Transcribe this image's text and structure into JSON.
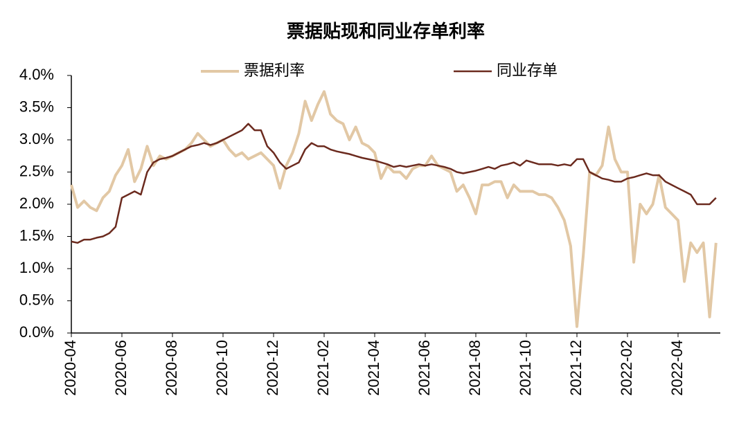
{
  "chart_data": {
    "type": "line",
    "title": "票据贴现和同业存单利率",
    "categories": [
      "2020-04",
      null,
      null,
      null,
      null,
      null,
      null,
      null,
      "2020-06",
      null,
      null,
      null,
      null,
      null,
      null,
      null,
      "2020-08",
      null,
      null,
      null,
      null,
      null,
      null,
      null,
      "2020-10",
      null,
      null,
      null,
      null,
      null,
      null,
      null,
      "2020-12",
      null,
      null,
      null,
      null,
      null,
      null,
      null,
      "2021-02",
      null,
      null,
      null,
      null,
      null,
      null,
      null,
      "2021-04",
      null,
      null,
      null,
      null,
      null,
      null,
      null,
      "2021-06",
      null,
      null,
      null,
      null,
      null,
      null,
      null,
      "2021-08",
      null,
      null,
      null,
      null,
      null,
      null,
      null,
      "2021-10",
      null,
      null,
      null,
      null,
      null,
      null,
      null,
      "2021-12",
      null,
      null,
      null,
      null,
      null,
      null,
      null,
      "2022-02",
      null,
      null,
      null,
      null,
      null,
      null,
      null,
      "2022-04",
      null,
      null,
      null,
      null,
      null,
      null
    ],
    "series": [
      {
        "name": "票据利率",
        "color": "#e2c8a5",
        "values": [
          2.3,
          1.95,
          2.05,
          1.95,
          1.9,
          2.1,
          2.2,
          2.45,
          2.6,
          2.85,
          2.35,
          2.55,
          2.9,
          2.6,
          2.75,
          2.7,
          2.75,
          2.8,
          2.85,
          2.95,
          3.1,
          3.0,
          2.9,
          2.95,
          3.0,
          2.85,
          2.75,
          2.8,
          2.7,
          2.75,
          2.8,
          2.7,
          2.6,
          2.25,
          2.6,
          2.8,
          3.1,
          3.6,
          3.3,
          3.55,
          3.75,
          3.4,
          3.3,
          3.25,
          3.0,
          3.2,
          2.95,
          2.9,
          2.8,
          2.4,
          2.6,
          2.5,
          2.5,
          2.4,
          2.55,
          2.6,
          2.6,
          2.75,
          2.6,
          2.55,
          2.5,
          2.2,
          2.3,
          2.1,
          1.85,
          2.3,
          2.3,
          2.35,
          2.35,
          2.1,
          2.3,
          2.2,
          2.2,
          2.2,
          2.15,
          2.15,
          2.1,
          1.95,
          1.75,
          1.35,
          0.1,
          1.2,
          2.5,
          2.45,
          2.6,
          3.2,
          2.7,
          2.5,
          2.5,
          1.1,
          2.0,
          1.85,
          2.0,
          2.45,
          1.95,
          1.85,
          1.75,
          0.8,
          1.4,
          1.25,
          1.4,
          0.25,
          1.4
        ]
      },
      {
        "name": "同业存单",
        "color": "#6b2a1e",
        "values": [
          1.42,
          1.4,
          1.45,
          1.45,
          1.48,
          1.5,
          1.55,
          1.65,
          2.1,
          2.15,
          2.2,
          2.15,
          2.5,
          2.65,
          2.7,
          2.72,
          2.75,
          2.8,
          2.85,
          2.9,
          2.92,
          2.95,
          2.92,
          2.95,
          3.0,
          3.05,
          3.1,
          3.15,
          3.25,
          3.15,
          3.15,
          2.9,
          2.8,
          2.65,
          2.55,
          2.6,
          2.65,
          2.85,
          2.95,
          2.9,
          2.9,
          2.85,
          2.82,
          2.8,
          2.78,
          2.75,
          2.72,
          2.7,
          2.68,
          2.65,
          2.62,
          2.58,
          2.6,
          2.58,
          2.6,
          2.62,
          2.6,
          2.62,
          2.6,
          2.58,
          2.55,
          2.5,
          2.48,
          2.5,
          2.52,
          2.55,
          2.58,
          2.55,
          2.6,
          2.62,
          2.65,
          2.6,
          2.68,
          2.65,
          2.62,
          2.62,
          2.62,
          2.6,
          2.62,
          2.6,
          2.7,
          2.7,
          2.5,
          2.45,
          2.4,
          2.38,
          2.35,
          2.35,
          2.4,
          2.42,
          2.45,
          2.48,
          2.45,
          2.45,
          2.35,
          2.3,
          2.25,
          2.2,
          2.15,
          2.0,
          2.0,
          2.0,
          2.1
        ]
      }
    ],
    "ylim": [
      0,
      4
    ],
    "yticks": [
      {
        "value": 0,
        "label": "0.0%"
      },
      {
        "value": 0.5,
        "label": "0.5%"
      },
      {
        "value": 1,
        "label": "1.0%"
      },
      {
        "value": 1.5,
        "label": "1.5%"
      },
      {
        "value": 2,
        "label": "2.0%"
      },
      {
        "value": 2.5,
        "label": "2.5%"
      },
      {
        "value": 3,
        "label": "3.0%"
      },
      {
        "value": 3.5,
        "label": "3.5%"
      },
      {
        "value": 4,
        "label": "4.0%"
      }
    ],
    "grid": false
  }
}
